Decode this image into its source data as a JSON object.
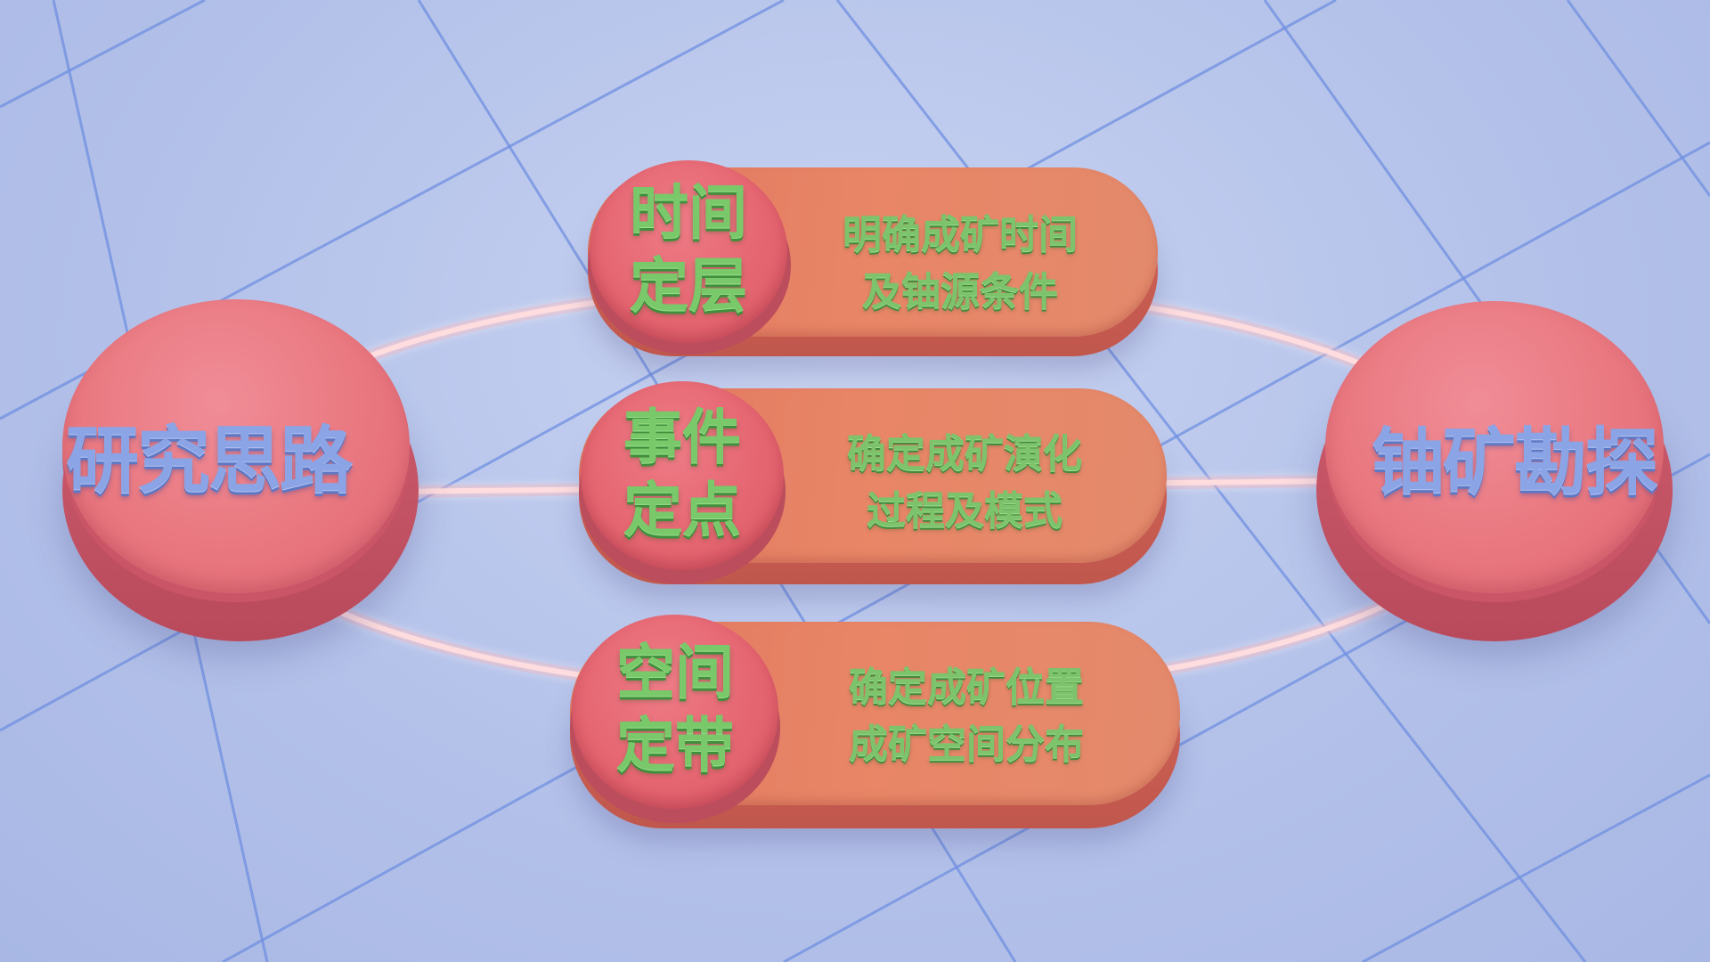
{
  "diagram": {
    "left_node": {
      "label": "研究思路"
    },
    "right_node": {
      "label": "铀矿勘探"
    },
    "rows": [
      {
        "tag_line1": "时间",
        "tag_line2": "定层",
        "desc_line1": "明确成矿时间",
        "desc_line2": "及铀源条件"
      },
      {
        "tag_line1": "事件",
        "tag_line2": "定点",
        "desc_line1": "确定成矿演化",
        "desc_line2": "过程及模式"
      },
      {
        "tag_line1": "空间",
        "tag_line2": "定带",
        "desc_line1": "确定成矿位置",
        "desc_line2": "成矿空间分布"
      }
    ]
  },
  "colors": {
    "background": "#b8c5ec",
    "grid_line": "#6f8fe0",
    "glow_line": "#fff0f0",
    "disc": "#e9777f",
    "capsule": "#e6806a",
    "tag_text": "#79c86a",
    "node_text": "#8ba4e6"
  }
}
